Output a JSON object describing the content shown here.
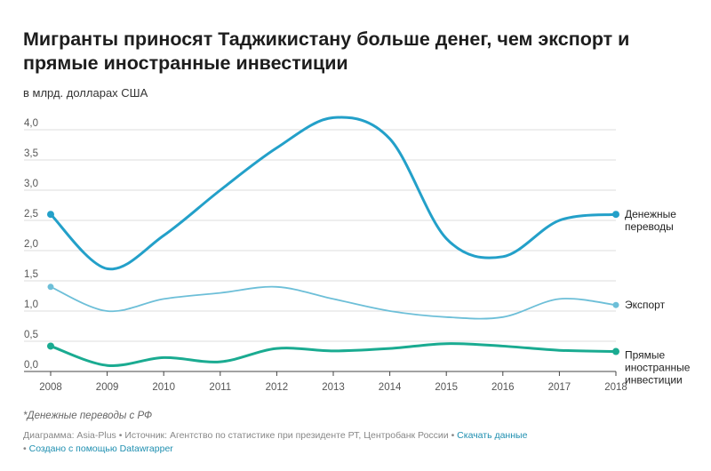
{
  "header": {
    "title": "Мигранты приносят Таджикистану больше денег, чем экспорт и прямые иностранные инвестиции",
    "subtitle": "в млрд. долларах США"
  },
  "footer": {
    "note": "*Денежные переводы с РФ",
    "chart_by": "Диаграмма: Asia-Plus",
    "source": "Источник: Агентство по статистике при президенте РТ, Центробанк России",
    "download_link": "Скачать данные",
    "created_with": "Создано с помощью Datawrapper",
    "separator": "•"
  },
  "chart_data": {
    "type": "line",
    "title": "Мигранты приносят Таджикистану больше денег, чем экспорт и прямые иностранные инвестиции",
    "ylabel": "в млрд. долларах США",
    "x": [
      2008,
      2009,
      2010,
      2011,
      2012,
      2013,
      2014,
      2015,
      2016,
      2017,
      2018
    ],
    "x_tick_labels": [
      "2008",
      "2009",
      "2010",
      "2011",
      "2012",
      "2013",
      "2014",
      "2015",
      "2016",
      "2017",
      "2018"
    ],
    "ylim": [
      0,
      4.2
    ],
    "y_ticks": [
      0,
      0.5,
      1,
      1.5,
      2,
      2.5,
      3,
      3.5,
      4
    ],
    "y_tick_labels": [
      "0,0",
      "0,5",
      "1,0",
      "1,5",
      "2,0",
      "2,5",
      "3,0",
      "3,5",
      "4,0"
    ],
    "grid": true,
    "series": [
      {
        "name": "Денежные переводы",
        "label_lines": [
          "Денежные",
          "переводы"
        ],
        "color": "#23a0c9",
        "width": "thick",
        "values": [
          2.6,
          1.7,
          2.25,
          3.0,
          3.7,
          4.2,
          3.85,
          2.2,
          1.9,
          2.5,
          2.6
        ]
      },
      {
        "name": "Экспорт",
        "label_lines": [
          "Экспорт"
        ],
        "color": "#6dbfd8",
        "width": "thin",
        "values": [
          1.4,
          1.0,
          1.2,
          1.3,
          1.4,
          1.2,
          1.0,
          0.9,
          0.9,
          1.2,
          1.1
        ]
      },
      {
        "name": "Прямые иностранные инвестиции",
        "label_lines": [
          "Прямые",
          "иностранные",
          "инвестиции"
        ],
        "color": "#1aab91",
        "width": "thick",
        "values": [
          0.42,
          0.1,
          0.23,
          0.16,
          0.38,
          0.34,
          0.38,
          0.46,
          0.42,
          0.35,
          0.33
        ]
      }
    ]
  }
}
